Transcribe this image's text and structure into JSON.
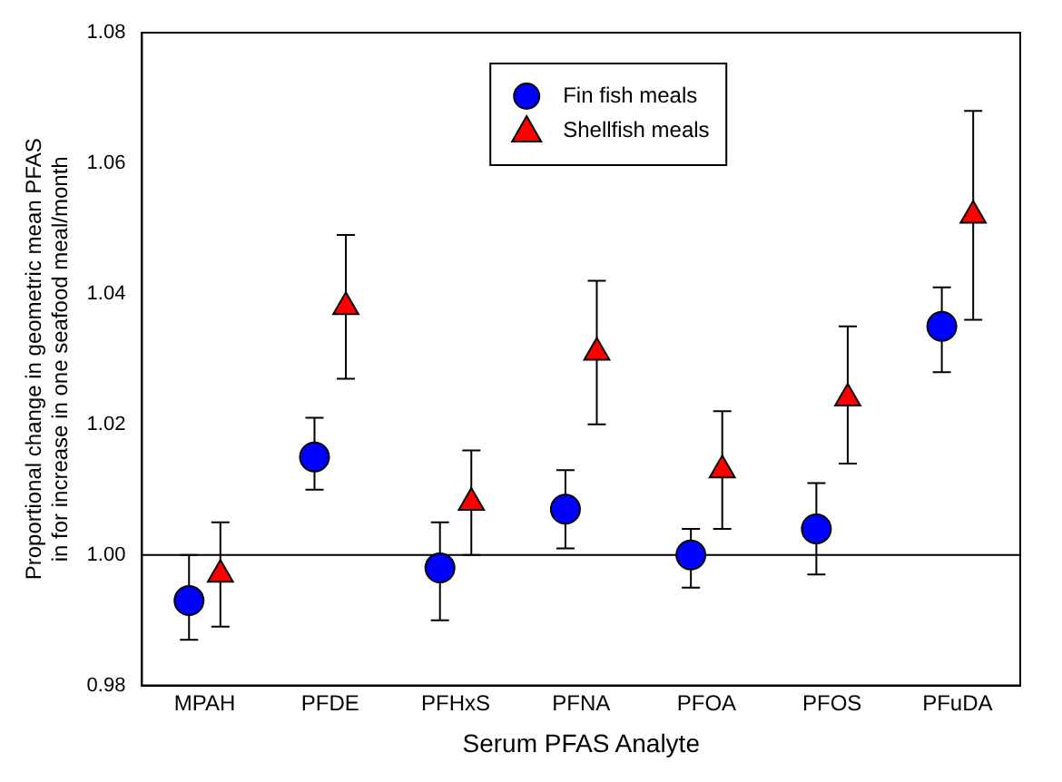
{
  "chart_data": {
    "type": "scatter",
    "xlabel": "Serum PFAS Analyte",
    "ylabel": "Proportional change in geometric mean PFAS\nin for increase in one seafood meal/month",
    "categories": [
      "MPAH",
      "PFDE",
      "PFHxS",
      "PFNA",
      "PFOA",
      "PFOS",
      "PFuDA"
    ],
    "series": [
      {
        "name": "Fin fish meals",
        "color": "#0000ff",
        "marker": "circle",
        "values": [
          0.993,
          1.015,
          0.998,
          1.007,
          1.0,
          1.004,
          1.035
        ],
        "errors": [
          [
            0.987,
            1.0
          ],
          [
            1.01,
            1.021
          ],
          [
            0.99,
            1.005
          ],
          [
            1.001,
            1.013
          ],
          [
            0.995,
            1.004
          ],
          [
            0.997,
            1.011
          ],
          [
            1.028,
            1.041
          ]
        ]
      },
      {
        "name": "Shellfish meals",
        "color": "#ff0000",
        "marker": "triangle",
        "values": [
          0.997,
          1.038,
          1.008,
          1.031,
          1.013,
          1.024,
          1.052
        ],
        "errors": [
          [
            0.989,
            1.005
          ],
          [
            1.027,
            1.049
          ],
          [
            1.0,
            1.016
          ],
          [
            1.02,
            1.042
          ],
          [
            1.004,
            1.022
          ],
          [
            1.014,
            1.035
          ],
          [
            1.036,
            1.068
          ]
        ]
      }
    ],
    "ylim": [
      0.98,
      1.08
    ],
    "yticks": [
      {
        "value": 0.98,
        "label": "0.98"
      },
      {
        "value": 1.0,
        "label": "1.00"
      },
      {
        "value": 1.02,
        "label": "1.02"
      },
      {
        "value": 1.04,
        "label": "1.04"
      },
      {
        "value": 1.06,
        "label": "1.06"
      },
      {
        "value": 1.08,
        "label": "1.08"
      }
    ],
    "ref_lines": [
      {
        "axis": "y",
        "value": 1.0,
        "color": "#000000"
      }
    ],
    "grid": false,
    "legend": "top"
  }
}
